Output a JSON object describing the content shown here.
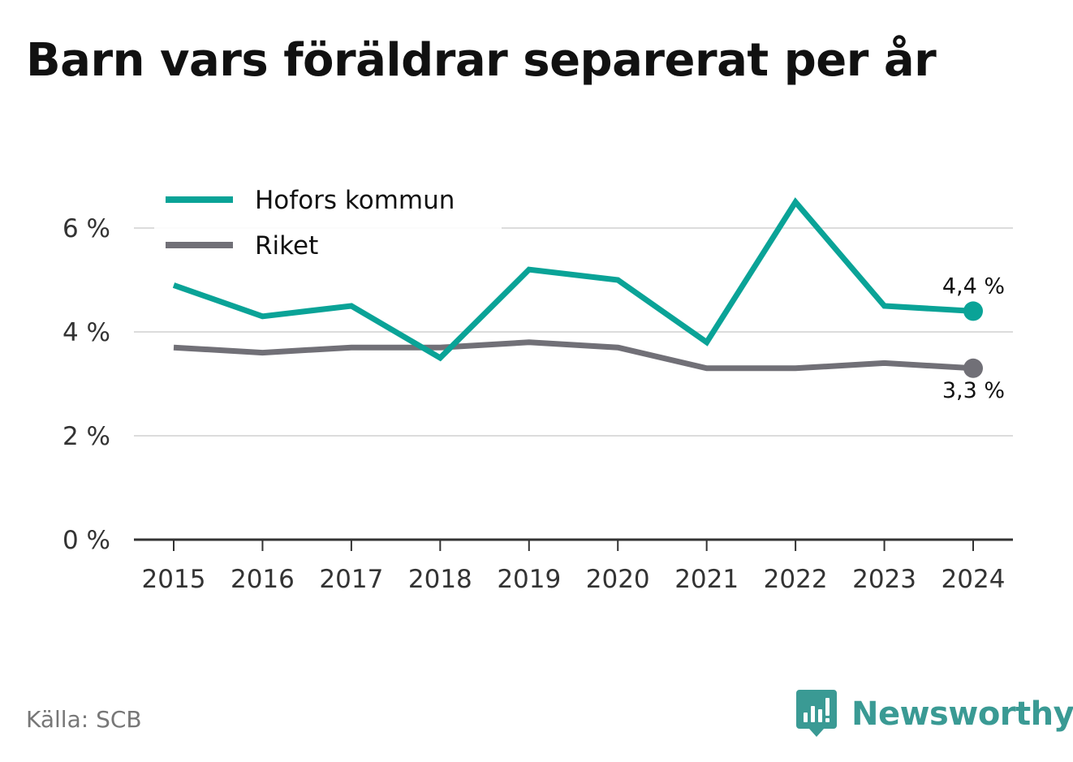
{
  "title": "Barn vars föräldrar separerat per år",
  "source": "Källa: SCB",
  "brand": {
    "name": "Newsworthy",
    "color": "#3a9a94",
    "icon": "newsworthy-logo-icon"
  },
  "chart_data": {
    "type": "line",
    "title": "Barn vars föräldrar separerat per år",
    "categories": [
      "2015",
      "2016",
      "2017",
      "2018",
      "2019",
      "2020",
      "2021",
      "2022",
      "2023",
      "2024"
    ],
    "series": [
      {
        "name": "Hofors kommun",
        "color": "#0aa397",
        "values": [
          4.9,
          4.3,
          4.5,
          3.5,
          5.2,
          5.0,
          3.8,
          6.5,
          4.5,
          4.4
        ],
        "end_label": "4,4 %"
      },
      {
        "name": "Riket",
        "color": "#717077",
        "values": [
          3.7,
          3.6,
          3.7,
          3.7,
          3.8,
          3.7,
          3.3,
          3.3,
          3.4,
          3.3
        ],
        "end_label": "3,3 %"
      }
    ],
    "y_ticks": [
      {
        "value": 0,
        "label": "0 %"
      },
      {
        "value": 2,
        "label": "2 %"
      },
      {
        "value": 4,
        "label": "4 %"
      },
      {
        "value": 6,
        "label": "6 %"
      }
    ],
    "ylim": [
      0,
      7
    ],
    "xlabel": "",
    "ylabel": "",
    "grid": true,
    "legend_position": "top-left"
  }
}
